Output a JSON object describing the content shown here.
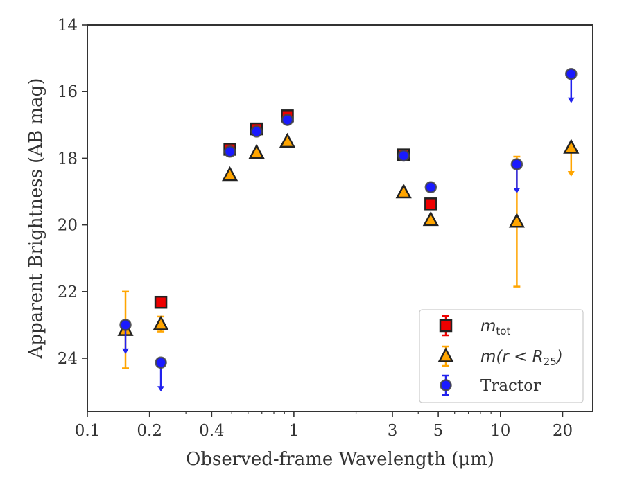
{
  "chart_data": {
    "type": "scatter",
    "title": "",
    "xlabel": "Observed-frame Wavelength (μm)",
    "ylabel": "Apparent Brightness (AB mag)",
    "xscale": "log",
    "xlim": [
      0.1,
      28
    ],
    "ylim": [
      25.6,
      14
    ],
    "y_inverted": true,
    "x_ticks": [
      0.1,
      0.2,
      0.4,
      1,
      3,
      5,
      10,
      20
    ],
    "x_tick_labels": [
      "0.1",
      "0.2",
      "0.4",
      "1",
      "3",
      "5",
      "10",
      "20"
    ],
    "y_ticks": [
      14,
      16,
      18,
      20,
      22,
      24
    ],
    "y_tick_labels": [
      "14",
      "16",
      "18",
      "20",
      "22",
      "24"
    ],
    "legend_position": "lower-right",
    "series": [
      {
        "key": "mtot",
        "legend_main": "m",
        "legend_sub": "tot",
        "marker": "square",
        "color": "#ee0000",
        "errcolor": "#ee0000",
        "points": [
          {
            "x": 0.227,
            "y": 22.32
          },
          {
            "x": 0.49,
            "y": 17.73
          },
          {
            "x": 0.66,
            "y": 17.12
          },
          {
            "x": 0.93,
            "y": 16.73
          },
          {
            "x": 3.4,
            "y": 17.9
          },
          {
            "x": 4.6,
            "y": 19.37
          }
        ]
      },
      {
        "key": "mr25",
        "legend_main": "m(r < R",
        "legend_sub": "25",
        "legend_end": ")",
        "marker": "triangle",
        "color": "#ffa500",
        "errcolor": "#ffa500",
        "points": [
          {
            "x": 0.153,
            "y": 23.15,
            "ylo": 22.0,
            "yhi": 24.3
          },
          {
            "x": 0.227,
            "y": 22.98,
            "ylo": 22.75,
            "yhi": 23.2
          },
          {
            "x": 0.49,
            "y": 18.5
          },
          {
            "x": 0.66,
            "y": 17.83
          },
          {
            "x": 0.93,
            "y": 17.5
          },
          {
            "x": 3.4,
            "y": 19.02
          },
          {
            "x": 4.6,
            "y": 19.85
          },
          {
            "x": 12.0,
            "y": 19.9,
            "ylo": 17.95,
            "yhi": 21.85
          },
          {
            "x": 22.0,
            "y": 17.68,
            "upper_limit": true
          }
        ]
      },
      {
        "key": "tractor",
        "legend_main": "Tractor",
        "marker": "circle",
        "color": "#1a1aff",
        "errcolor": "#2222ee",
        "points": [
          {
            "x": 0.153,
            "y": 23.0,
            "upper_limit": true
          },
          {
            "x": 0.227,
            "y": 24.13,
            "upper_limit": true
          },
          {
            "x": 0.49,
            "y": 17.8
          },
          {
            "x": 0.66,
            "y": 17.2
          },
          {
            "x": 0.93,
            "y": 16.85
          },
          {
            "x": 3.4,
            "y": 17.92
          },
          {
            "x": 4.6,
            "y": 18.87
          },
          {
            "x": 12.0,
            "y": 18.18,
            "upper_limit": true
          },
          {
            "x": 22.0,
            "y": 15.47,
            "upper_limit": true
          }
        ]
      }
    ]
  }
}
